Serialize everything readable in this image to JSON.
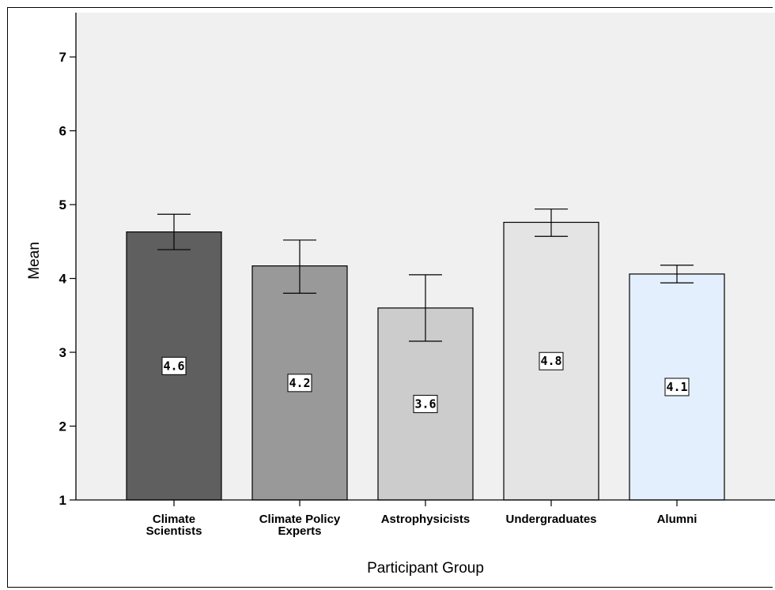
{
  "chart_data": {
    "type": "bar",
    "xlabel": "Participant Group",
    "ylabel": "Mean",
    "ylim": [
      1,
      7.6
    ],
    "yticks": [
      1,
      2,
      3,
      4,
      5,
      6,
      7
    ],
    "grid": false,
    "categories": [
      "Climate\nScientists",
      "Climate Policy\nExperts",
      "Astrophysicists",
      "Undergraduates",
      "Alumni"
    ],
    "values": [
      4.63,
      4.17,
      3.6,
      4.76,
      4.06
    ],
    "value_labels": [
      "4.6",
      "4.2",
      "3.6",
      "4.8",
      "4.1"
    ],
    "error_low": [
      4.39,
      3.8,
      3.15,
      4.57,
      3.94
    ],
    "error_high": [
      4.87,
      4.52,
      4.05,
      4.94,
      4.18
    ],
    "bar_colors": [
      "#5f5f5f",
      "#999999",
      "#cccccc",
      "#e4e4e4",
      "#e3effc"
    ],
    "plot_background": "#f0f0f0"
  }
}
